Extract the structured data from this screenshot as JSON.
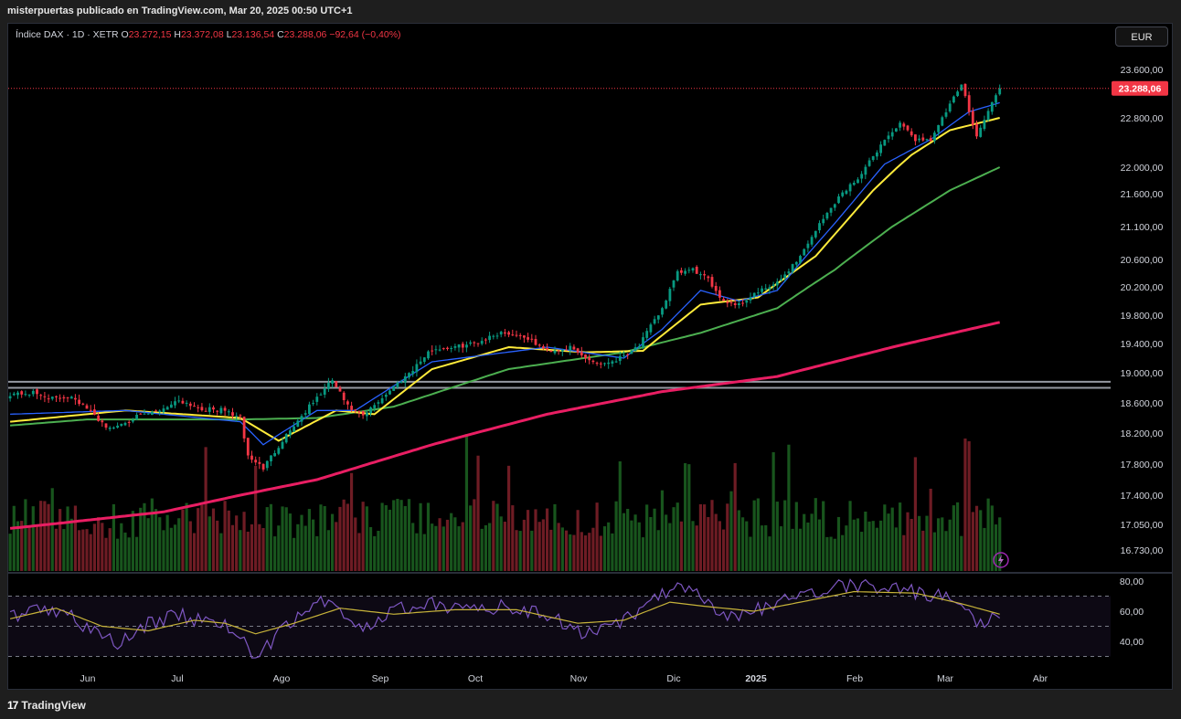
{
  "header": {
    "publish_line": "misterpuertas publicado en TradingView.com, Mar 20, 2025 00:50 UTC+1"
  },
  "legend": {
    "symbol": "Índice DAX · 1D · XETR",
    "o_label": "O",
    "o_value": "23.272,15",
    "h_label": "H",
    "h_value": "23.372,08",
    "l_label": "L",
    "l_value": "23.136,54",
    "c_label": "C",
    "c_value": "23.288,06",
    "change": "−92,64 (−0,40%)"
  },
  "currency": "EUR",
  "footer": {
    "brand": "TradingView",
    "logo": "17"
  },
  "colors": {
    "up": "#089981",
    "down": "#f23645",
    "ema_fast": "#2962ff",
    "ema_mid": "#ffeb3b",
    "ema_slow": "#4caf50",
    "ema_long": "#e91e63",
    "rsi": "#7e57c2",
    "rsi_ma": "#c7b33a",
    "last_price": "#f23645"
  },
  "chart_data": [
    {
      "type": "candlestick",
      "title": "Índice DAX · 1D · XETR",
      "price_axis_ticks": [
        23600,
        22800,
        22000,
        21600,
        21100,
        20600,
        20200,
        19800,
        19400,
        19000,
        18600,
        18200,
        17800,
        17400,
        17050,
        16730
      ],
      "price_axis_labels": [
        "23.600,00",
        "22.800,00",
        "22.000,00",
        "21.600,00",
        "21.100,00",
        "20.600,00",
        "20.200,00",
        "19.800,00",
        "19.400,00",
        "19.000,00",
        "18.600,00",
        "18.200,00",
        "17.800,00",
        "17.400,00",
        "17.050,00",
        "16.730,00"
      ],
      "last_price": 23288.06,
      "last_price_label": "23.288,06",
      "time_axis_labels": [
        "Jun",
        "Jul",
        "Ago",
        "Sep",
        "Oct",
        "Nov",
        "Dic",
        "2025",
        "Feb",
        "Mar",
        "Abr"
      ],
      "horizontal_levels": [
        18880,
        18800
      ],
      "close_keypoints": [
        [
          0,
          18720
        ],
        [
          6,
          18730
        ],
        [
          12,
          18650
        ],
        [
          16,
          18700
        ],
        [
          20,
          18520
        ],
        [
          26,
          18250
        ],
        [
          32,
          18400
        ],
        [
          38,
          18480
        ],
        [
          44,
          18640
        ],
        [
          50,
          18520
        ],
        [
          56,
          18500
        ],
        [
          60,
          18400
        ],
        [
          62,
          17900
        ],
        [
          66,
          17750
        ],
        [
          72,
          18180
        ],
        [
          78,
          18550
        ],
        [
          84,
          18900
        ],
        [
          88,
          18550
        ],
        [
          92,
          18420
        ],
        [
          98,
          18720
        ],
        [
          104,
          19000
        ],
        [
          110,
          19320
        ],
        [
          116,
          19350
        ],
        [
          122,
          19420
        ],
        [
          128,
          19560
        ],
        [
          134,
          19500
        ],
        [
          140,
          19300
        ],
        [
          146,
          19340
        ],
        [
          150,
          19200
        ],
        [
          154,
          19120
        ],
        [
          158,
          19180
        ],
        [
          164,
          19380
        ],
        [
          170,
          19900
        ],
        [
          174,
          20400
        ],
        [
          178,
          20450
        ],
        [
          182,
          20300
        ],
        [
          186,
          20000
        ],
        [
          190,
          19950
        ],
        [
          194,
          20100
        ],
        [
          200,
          20250
        ],
        [
          206,
          20650
        ],
        [
          210,
          21050
        ],
        [
          216,
          21550
        ],
        [
          222,
          21900
        ],
        [
          228,
          22450
        ],
        [
          232,
          22700
        ],
        [
          236,
          22450
        ],
        [
          240,
          22450
        ],
        [
          244,
          22900
        ],
        [
          248,
          23350
        ],
        [
          252,
          22500
        ],
        [
          256,
          23050
        ],
        [
          258,
          23288
        ]
      ],
      "ema_fast_keypoints": [
        [
          0,
          18450
        ],
        [
          30,
          18500
        ],
        [
          60,
          18350
        ],
        [
          66,
          18050
        ],
        [
          80,
          18500
        ],
        [
          90,
          18500
        ],
        [
          110,
          19150
        ],
        [
          140,
          19350
        ],
        [
          160,
          19200
        ],
        [
          170,
          19600
        ],
        [
          180,
          20150
        ],
        [
          190,
          20000
        ],
        [
          200,
          20150
        ],
        [
          215,
          21150
        ],
        [
          228,
          22050
        ],
        [
          240,
          22450
        ],
        [
          250,
          22900
        ],
        [
          258,
          23050
        ]
      ],
      "ema_mid_keypoints": [
        [
          0,
          18350
        ],
        [
          30,
          18500
        ],
        [
          60,
          18400
        ],
        [
          70,
          18100
        ],
        [
          85,
          18500
        ],
        [
          95,
          18450
        ],
        [
          110,
          19050
        ],
        [
          130,
          19350
        ],
        [
          150,
          19280
        ],
        [
          165,
          19300
        ],
        [
          180,
          19950
        ],
        [
          195,
          20050
        ],
        [
          210,
          20650
        ],
        [
          225,
          21650
        ],
        [
          235,
          22200
        ],
        [
          245,
          22600
        ],
        [
          258,
          22800
        ]
      ],
      "ema_slow_keypoints": [
        [
          0,
          18300
        ],
        [
          20,
          18380
        ],
        [
          60,
          18380
        ],
        [
          80,
          18400
        ],
        [
          100,
          18550
        ],
        [
          130,
          19050
        ],
        [
          160,
          19280
        ],
        [
          180,
          19550
        ],
        [
          200,
          19900
        ],
        [
          215,
          20450
        ],
        [
          230,
          21100
        ],
        [
          245,
          21650
        ],
        [
          258,
          22000
        ]
      ],
      "ema_long_keypoints": [
        [
          0,
          17000
        ],
        [
          40,
          17200
        ],
        [
          80,
          17600
        ],
        [
          110,
          18050
        ],
        [
          140,
          18450
        ],
        [
          170,
          18750
        ],
        [
          200,
          18950
        ],
        [
          230,
          19350
        ],
        [
          258,
          19700
        ]
      ]
    },
    {
      "type": "bar",
      "title": "Volume",
      "note": "volume histogram colored by candle direction"
    },
    {
      "type": "line",
      "title": "RSI",
      "y_axis_ticks": [
        80,
        60,
        40
      ],
      "y_axis_labels": [
        "80,00",
        "60,00",
        "40,00"
      ],
      "bands": [
        70,
        50,
        30
      ],
      "rsi_keypoints": [
        [
          0,
          55
        ],
        [
          8,
          63
        ],
        [
          16,
          58
        ],
        [
          22,
          45
        ],
        [
          28,
          38
        ],
        [
          36,
          52
        ],
        [
          44,
          58
        ],
        [
          52,
          52
        ],
        [
          58,
          50
        ],
        [
          62,
          34
        ],
        [
          64,
          28
        ],
        [
          70,
          45
        ],
        [
          78,
          62
        ],
        [
          84,
          70
        ],
        [
          88,
          55
        ],
        [
          92,
          47
        ],
        [
          100,
          60
        ],
        [
          108,
          66
        ],
        [
          116,
          62
        ],
        [
          124,
          63
        ],
        [
          132,
          62
        ],
        [
          142,
          55
        ],
        [
          150,
          45
        ],
        [
          156,
          48
        ],
        [
          164,
          60
        ],
        [
          172,
          75
        ],
        [
          178,
          72
        ],
        [
          184,
          60
        ],
        [
          190,
          55
        ],
        [
          196,
          62
        ],
        [
          204,
          70
        ],
        [
          212,
          75
        ],
        [
          220,
          78
        ],
        [
          228,
          76
        ],
        [
          236,
          73
        ],
        [
          244,
          70
        ],
        [
          248,
          62
        ],
        [
          252,
          52
        ],
        [
          256,
          55
        ],
        [
          258,
          58
        ]
      ],
      "rsi_ma_keypoints": [
        [
          0,
          55
        ],
        [
          12,
          62
        ],
        [
          24,
          50
        ],
        [
          36,
          47
        ],
        [
          48,
          54
        ],
        [
          56,
          52
        ],
        [
          64,
          45
        ],
        [
          74,
          52
        ],
        [
          86,
          62
        ],
        [
          100,
          58
        ],
        [
          116,
          61
        ],
        [
          132,
          61
        ],
        [
          148,
          52
        ],
        [
          160,
          54
        ],
        [
          172,
          66
        ],
        [
          182,
          63
        ],
        [
          194,
          60
        ],
        [
          206,
          66
        ],
        [
          220,
          73
        ],
        [
          236,
          72
        ],
        [
          248,
          65
        ],
        [
          258,
          58
        ]
      ]
    }
  ]
}
